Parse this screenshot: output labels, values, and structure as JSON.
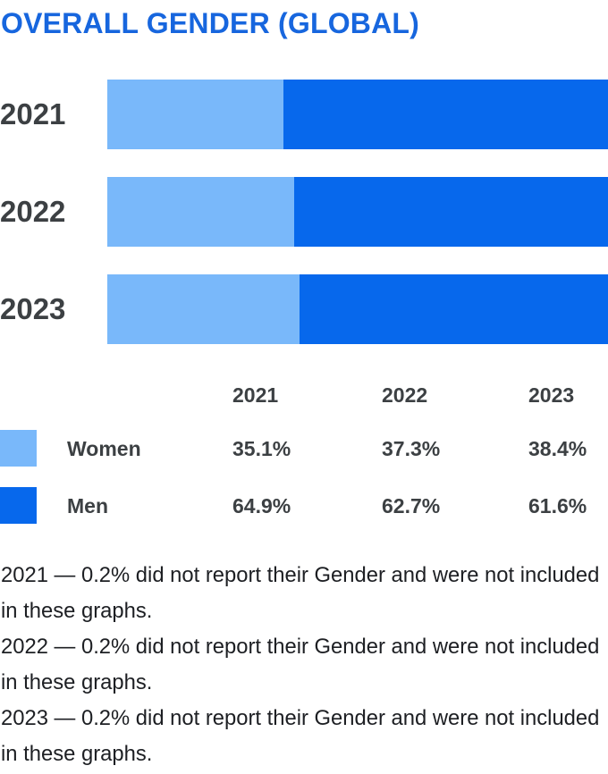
{
  "title": "OVERALL GENDER (GLOBAL)",
  "colors": {
    "title": "#1766DE",
    "women": "#79B8FA",
    "men": "#0768EC",
    "table_text": "#3C4043",
    "footnote_text": "#1D1F23"
  },
  "chart_data": {
    "type": "bar",
    "orientation": "horizontal",
    "stacked": true,
    "title": "OVERALL GENDER (GLOBAL)",
    "categories": [
      "2021",
      "2022",
      "2023"
    ],
    "series": [
      {
        "name": "Women",
        "color": "#79B8FA",
        "values": [
          35.1,
          37.3,
          38.4
        ]
      },
      {
        "name": "Men",
        "color": "#0768EC",
        "values": [
          64.9,
          62.7,
          61.6
        ]
      }
    ],
    "value_unit": "%",
    "xlim": [
      0,
      100
    ],
    "grid": false,
    "legend_position": "table-below-with-swatches",
    "annotations": [
      "2021 — 0.2% did not report their Gender and were not included in these graphs.",
      "2022 — 0.2% did not report their Gender and were not included in these graphs.",
      "2023 — 0.2% did not report their Gender and were not included in these graphs."
    ]
  },
  "bars": {
    "rows": [
      {
        "year": "2021",
        "women_pct": 35.1,
        "men_pct": 64.9
      },
      {
        "year": "2022",
        "women_pct": 37.3,
        "men_pct": 62.7
      },
      {
        "year": "2023",
        "women_pct": 38.4,
        "men_pct": 61.6
      }
    ]
  },
  "table": {
    "col_headers": [
      "2021",
      "2022",
      "2023"
    ],
    "rows": [
      {
        "label": "Women",
        "values": [
          "35.1%",
          "37.3%",
          "38.4%"
        ]
      },
      {
        "label": "Men",
        "values": [
          "64.9%",
          "62.7%",
          "61.6%"
        ]
      }
    ]
  },
  "footnotes": [
    "2021 — 0.2% did not report their Gender and were not included in these graphs.",
    "2022 — 0.2% did not report their Gender and were not included in these graphs.",
    "2023 — 0.2% did not report their Gender and were not included in these graphs."
  ]
}
